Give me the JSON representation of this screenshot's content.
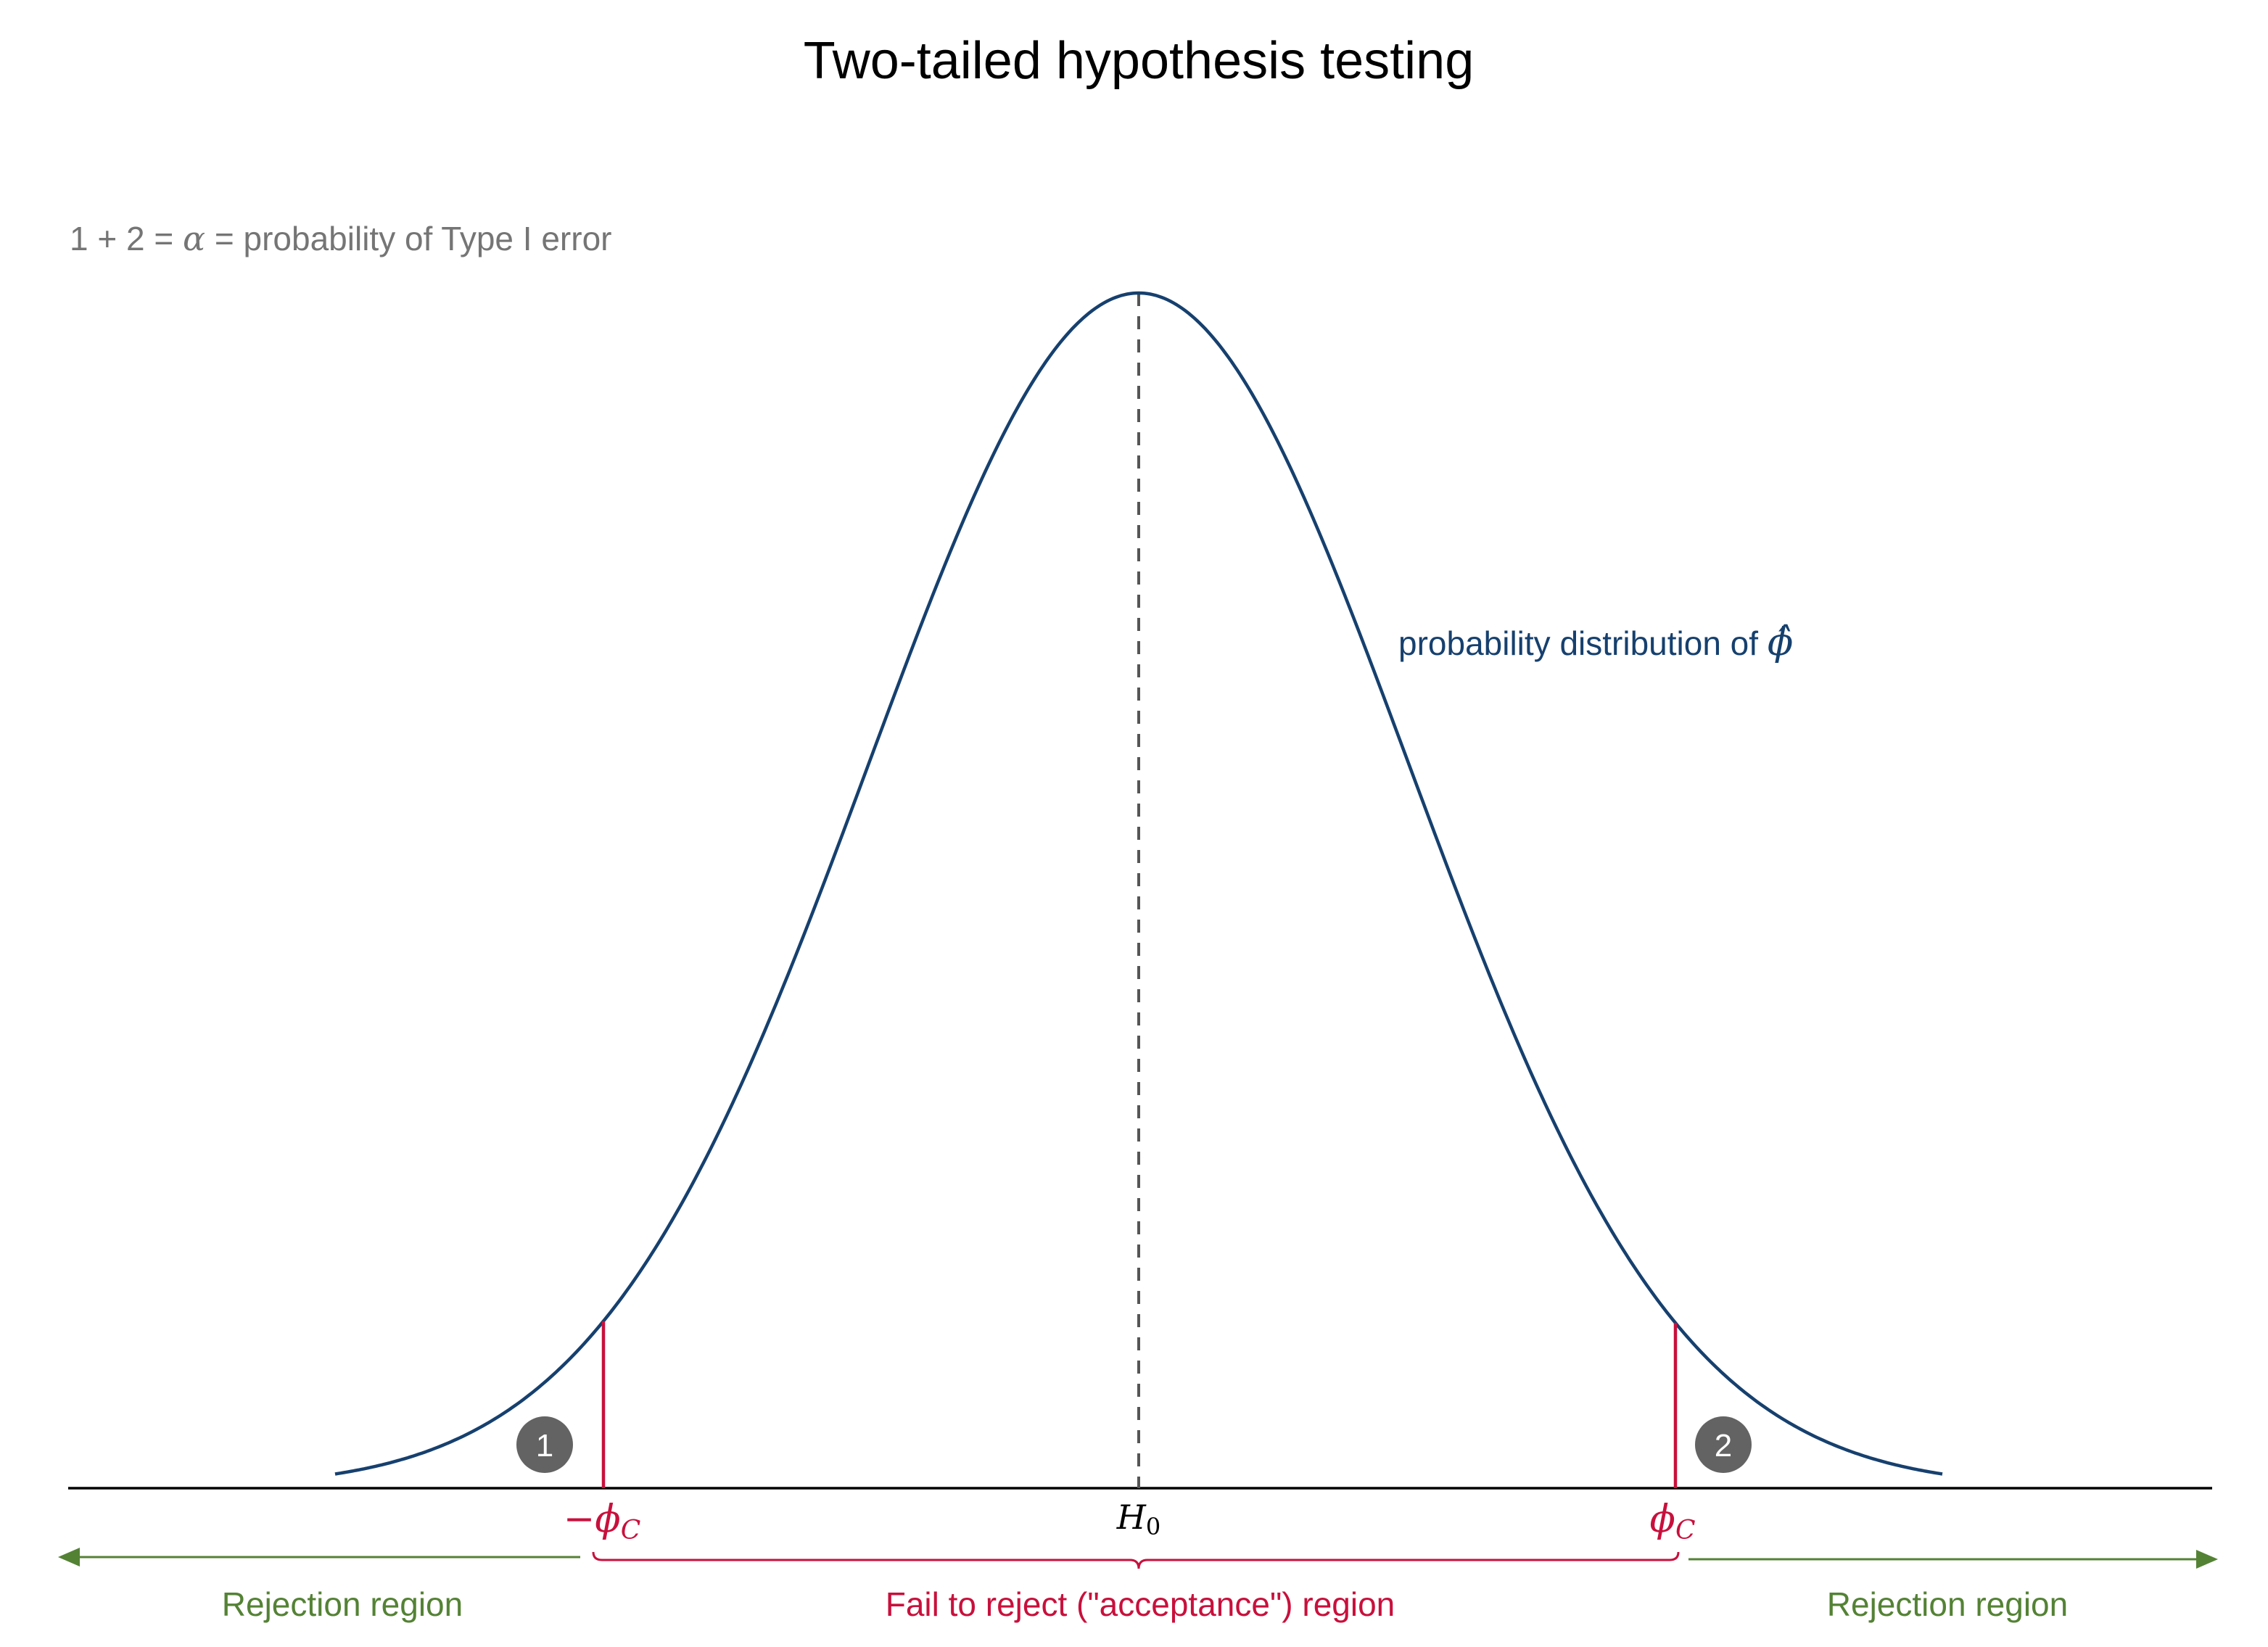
{
  "title": "Two-tailed hypothesis testing",
  "note": {
    "prefix": "1 + 2 = ",
    "alpha": "α",
    "suffix": " = probability of Type I error"
  },
  "curve_label": {
    "text": "probability distribution of ",
    "symbol": "ϕ̂"
  },
  "markers": {
    "left": "1",
    "right": "2"
  },
  "axis_labels": {
    "left_critical_sign": "−",
    "left_critical_symbol": "ϕ",
    "left_critical_sub": "C",
    "center_symbol": "H",
    "center_sub": "0",
    "right_critical_symbol": "ϕ",
    "right_critical_sub": "C"
  },
  "regions": {
    "left": "Rejection region",
    "middle": "Fail to reject (\"acceptance\") region",
    "right": "Rejection region"
  },
  "colors": {
    "curve": "#16406e",
    "critical": "#c8103c",
    "rejection": "#548235",
    "note": "#757575",
    "marker": "#636363",
    "axis": "#000000"
  }
}
